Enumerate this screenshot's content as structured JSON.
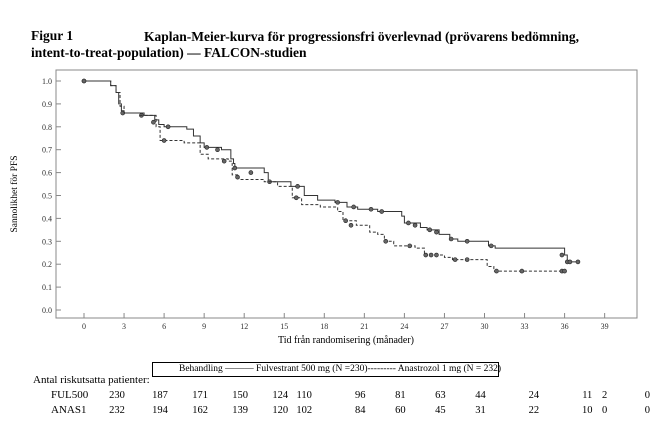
{
  "figure": {
    "label": "Figur 1",
    "title_line1": "Kaplan-Meier-kurva för progressionsfri överlevnad (prövarens bedömning,",
    "title_line2": "intent-to-treat-population) — FALCON-studien"
  },
  "chart_data": {
    "type": "line",
    "subtype": "kaplan-meier step curve",
    "xlabel": "Tid från randomisering (månader)",
    "ylabel": "Sannolikhet för PFS",
    "xlim": [
      -3,
      42
    ],
    "ylim": [
      0,
      1.0
    ],
    "xticks": [
      0,
      3,
      6,
      9,
      12,
      15,
      18,
      21,
      24,
      27,
      30,
      33,
      36,
      39
    ],
    "yticks": [
      "0.0",
      "0.1",
      "0.2",
      "0.3",
      "0.4",
      "0.5",
      "0.6",
      "0.7",
      "0.8",
      "0.9",
      "1.0"
    ],
    "series": [
      {
        "name": "Fulvestrant 500 mg (N =230)",
        "style": "solid",
        "steps": [
          [
            0,
            1.0
          ],
          [
            2.0,
            0.98
          ],
          [
            2.4,
            0.95
          ],
          [
            2.6,
            0.9
          ],
          [
            2.8,
            0.87
          ],
          [
            3.0,
            0.86
          ],
          [
            4.5,
            0.85
          ],
          [
            5.3,
            0.83
          ],
          [
            5.6,
            0.81
          ],
          [
            6.0,
            0.8
          ],
          [
            7.7,
            0.79
          ],
          [
            8.2,
            0.76
          ],
          [
            8.7,
            0.73
          ],
          [
            9.0,
            0.71
          ],
          [
            10.3,
            0.7
          ],
          [
            11.0,
            0.66
          ],
          [
            11.2,
            0.64
          ],
          [
            11.3,
            0.62
          ],
          [
            13.5,
            0.6
          ],
          [
            13.8,
            0.56
          ],
          [
            15.5,
            0.54
          ],
          [
            16.5,
            0.5
          ],
          [
            17.5,
            0.48
          ],
          [
            18.8,
            0.47
          ],
          [
            19.7,
            0.45
          ],
          [
            20.5,
            0.44
          ],
          [
            22.0,
            0.43
          ],
          [
            23.8,
            0.41
          ],
          [
            24.0,
            0.38
          ],
          [
            25.2,
            0.36
          ],
          [
            25.7,
            0.35
          ],
          [
            26.6,
            0.33
          ],
          [
            27.4,
            0.31
          ],
          [
            28.0,
            0.3
          ],
          [
            30.3,
            0.28
          ],
          [
            30.8,
            0.27
          ],
          [
            36.0,
            0.24
          ],
          [
            36.2,
            0.21
          ],
          [
            37.0,
            0.21
          ]
        ],
        "censored": [
          [
            0,
            1.0
          ],
          [
            2.9,
            0.86
          ],
          [
            4.3,
            0.85
          ],
          [
            6.3,
            0.8
          ],
          [
            9.2,
            0.71
          ],
          [
            10.0,
            0.7
          ],
          [
            11.3,
            0.62
          ],
          [
            12.5,
            0.6
          ],
          [
            13.9,
            0.56
          ],
          [
            16.0,
            0.54
          ],
          [
            19.0,
            0.47
          ],
          [
            20.2,
            0.45
          ],
          [
            21.5,
            0.44
          ],
          [
            22.3,
            0.43
          ],
          [
            24.3,
            0.38
          ],
          [
            24.8,
            0.37
          ],
          [
            25.9,
            0.35
          ],
          [
            26.4,
            0.34
          ],
          [
            27.5,
            0.31
          ],
          [
            28.7,
            0.3
          ],
          [
            30.5,
            0.28
          ],
          [
            35.8,
            0.24
          ],
          [
            36.2,
            0.21
          ],
          [
            36.4,
            0.21
          ],
          [
            37.0,
            0.21
          ]
        ]
      },
      {
        "name": "Anastrozol 1 mg (N = 232)",
        "style": "dashed",
        "steps": [
          [
            0,
            1.0
          ],
          [
            2.0,
            0.98
          ],
          [
            2.4,
            0.95
          ],
          [
            2.7,
            0.89
          ],
          [
            3.0,
            0.86
          ],
          [
            4.2,
            0.85
          ],
          [
            5.4,
            0.8
          ],
          [
            5.7,
            0.74
          ],
          [
            7.5,
            0.73
          ],
          [
            8.7,
            0.68
          ],
          [
            9.3,
            0.66
          ],
          [
            10.8,
            0.65
          ],
          [
            11.1,
            0.59
          ],
          [
            11.6,
            0.57
          ],
          [
            13.5,
            0.56
          ],
          [
            14.5,
            0.54
          ],
          [
            15.6,
            0.49
          ],
          [
            16.3,
            0.46
          ],
          [
            17.7,
            0.45
          ],
          [
            19.0,
            0.43
          ],
          [
            19.4,
            0.39
          ],
          [
            20.4,
            0.37
          ],
          [
            21.4,
            0.34
          ],
          [
            22.0,
            0.33
          ],
          [
            22.5,
            0.3
          ],
          [
            23.2,
            0.28
          ],
          [
            24.8,
            0.27
          ],
          [
            25.5,
            0.24
          ],
          [
            27.0,
            0.23
          ],
          [
            27.6,
            0.22
          ],
          [
            30.2,
            0.19
          ],
          [
            30.7,
            0.17
          ],
          [
            36.0,
            0.17
          ]
        ],
        "censored": [
          [
            0,
            1.0
          ],
          [
            5.2,
            0.82
          ],
          [
            6.0,
            0.74
          ],
          [
            10.5,
            0.65
          ],
          [
            11.5,
            0.58
          ],
          [
            15.9,
            0.49
          ],
          [
            19.6,
            0.39
          ],
          [
            20.0,
            0.37
          ],
          [
            22.6,
            0.3
          ],
          [
            24.4,
            0.28
          ],
          [
            25.6,
            0.24
          ],
          [
            26.0,
            0.24
          ],
          [
            26.4,
            0.24
          ],
          [
            27.8,
            0.22
          ],
          [
            28.7,
            0.22
          ],
          [
            30.9,
            0.17
          ],
          [
            32.8,
            0.17
          ],
          [
            35.8,
            0.17
          ],
          [
            36.0,
            0.17
          ]
        ]
      }
    ]
  },
  "risk_table": {
    "label": "Antal riskutsatta patienter:",
    "legend": "Behandling ——— Fulvestrant 500 mg (N =230)--------- Anastrozol 1 mg (N = 232)",
    "rows": [
      {
        "name": "FUL500",
        "cells": [
          {
            "x": 0,
            "v": "230"
          },
          {
            "x": 3,
            "v": "187"
          },
          {
            "x": 6,
            "v": "171"
          },
          {
            "x": 9,
            "v": "150"
          },
          {
            "x": 12,
            "v": "124"
          },
          {
            "x": 13.8,
            "v": "110"
          },
          {
            "x": 18,
            "v": "96"
          },
          {
            "x": 21,
            "v": "81"
          },
          {
            "x": 24,
            "v": "63"
          },
          {
            "x": 27,
            "v": "44"
          },
          {
            "x": 31,
            "v": "24"
          },
          {
            "x": 35,
            "v": "11"
          },
          {
            "x": 36.3,
            "v": "2"
          },
          {
            "x": 39.5,
            "v": "0"
          }
        ]
      },
      {
        "name": "ANAS1",
        "cells": [
          {
            "x": 0,
            "v": "232"
          },
          {
            "x": 3,
            "v": "194"
          },
          {
            "x": 6,
            "v": "162"
          },
          {
            "x": 9,
            "v": "139"
          },
          {
            "x": 12,
            "v": "120"
          },
          {
            "x": 13.8,
            "v": "102"
          },
          {
            "x": 18,
            "v": "84"
          },
          {
            "x": 21,
            "v": "60"
          },
          {
            "x": 24,
            "v": "45"
          },
          {
            "x": 27,
            "v": "31"
          },
          {
            "x": 31,
            "v": "22"
          },
          {
            "x": 35,
            "v": "10"
          },
          {
            "x": 36.3,
            "v": "0"
          },
          {
            "x": 39.5,
            "v": "0"
          }
        ]
      }
    ]
  }
}
